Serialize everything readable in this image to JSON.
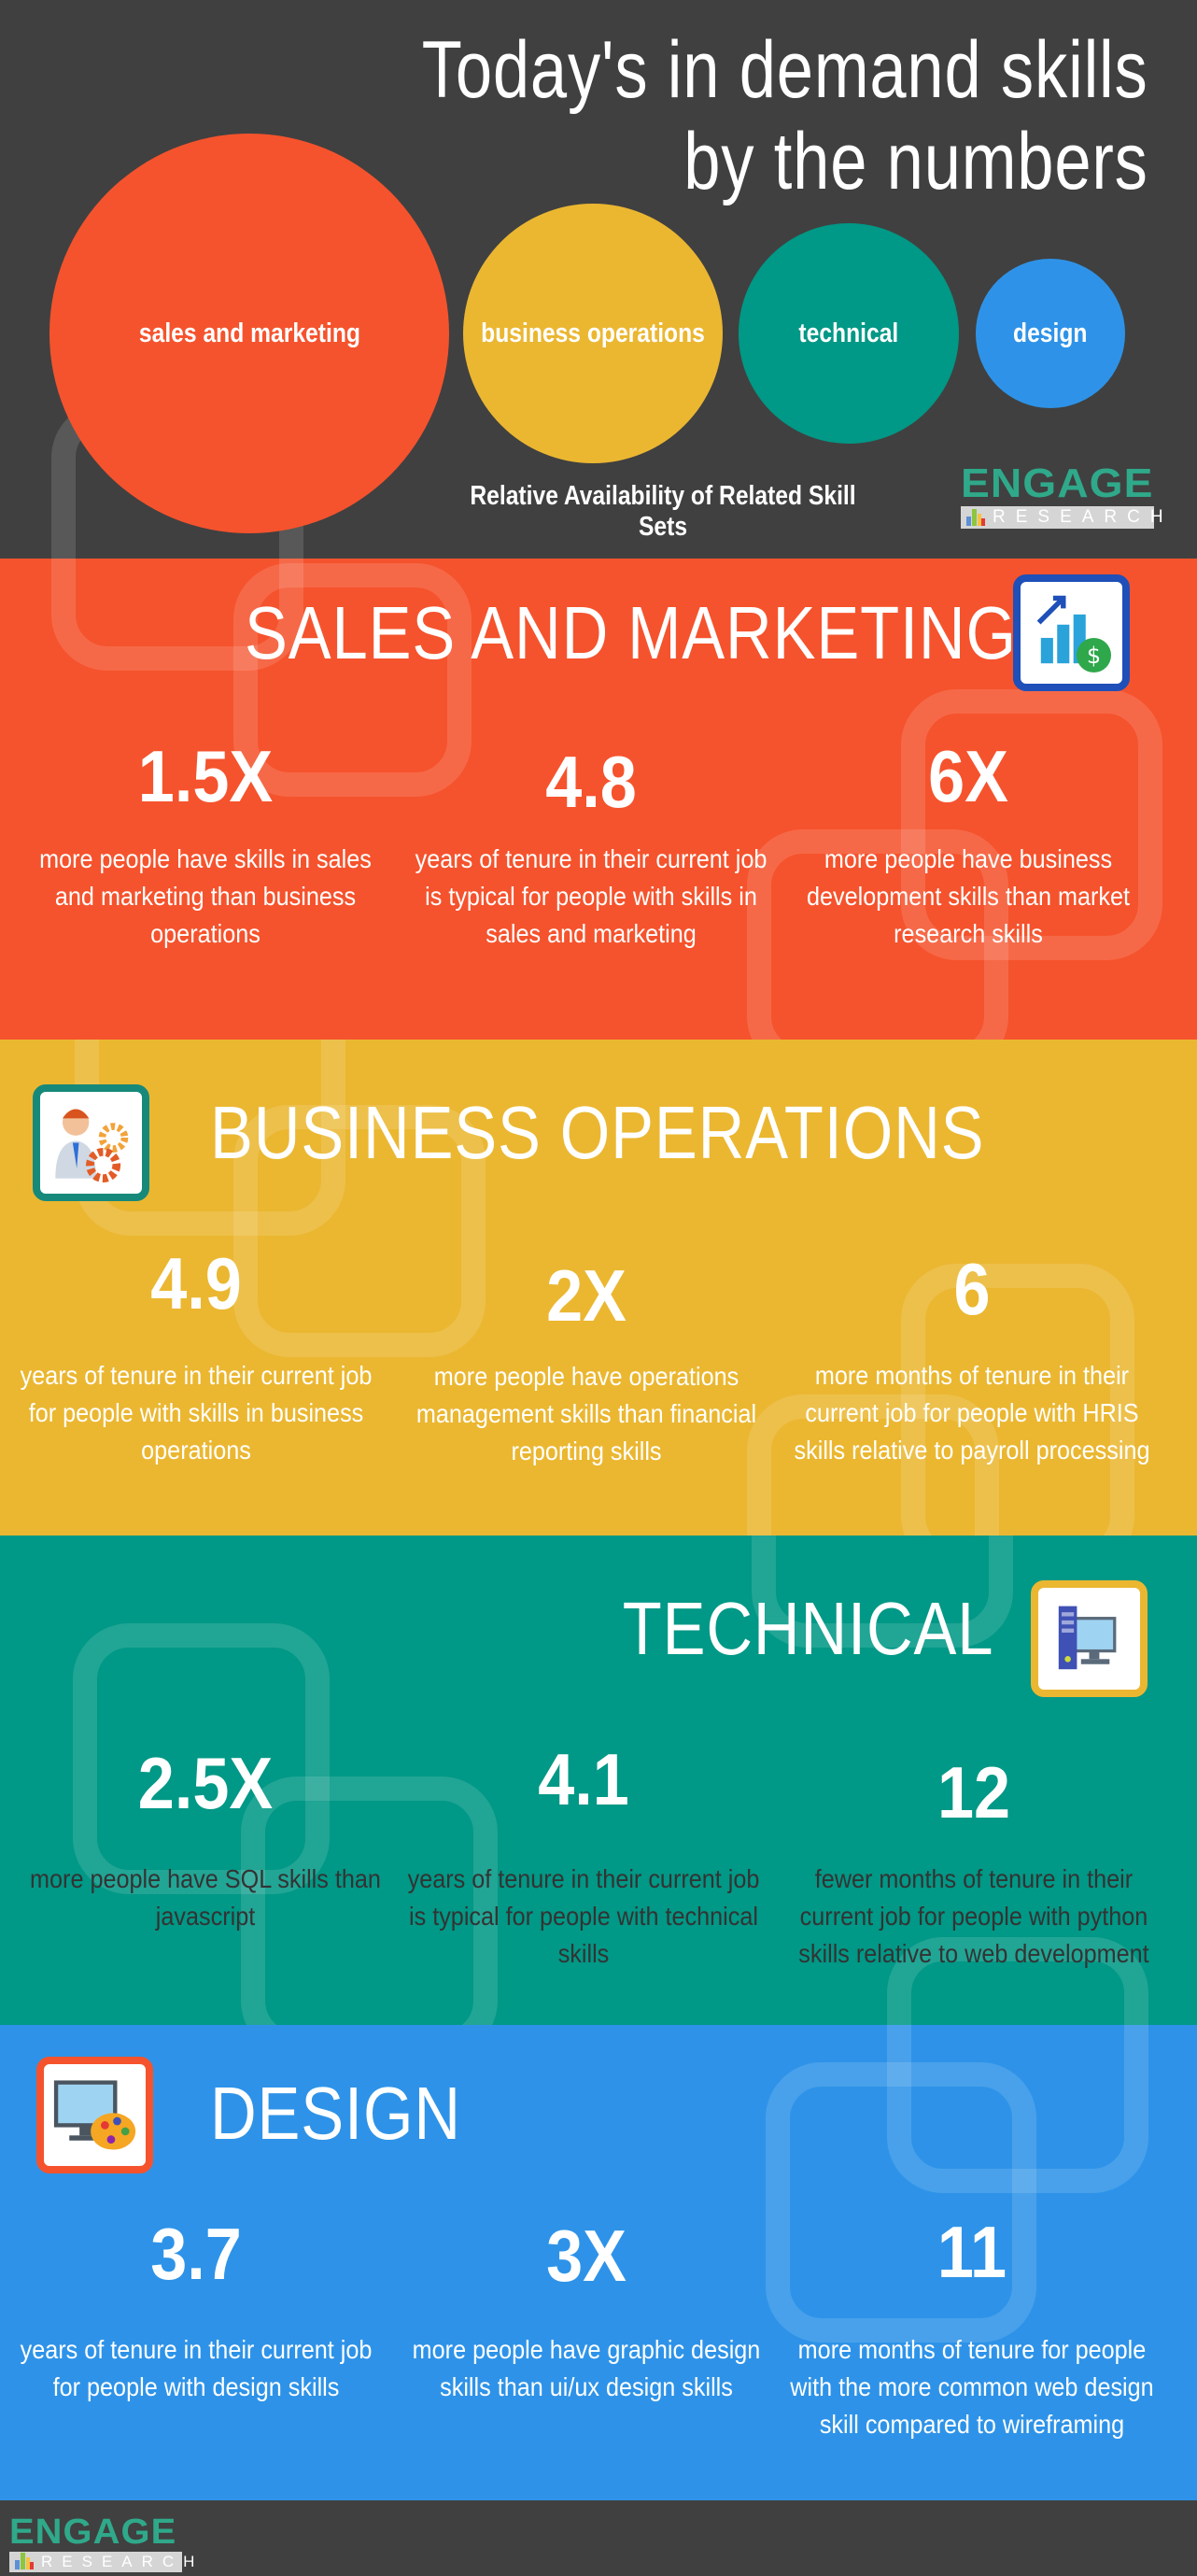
{
  "header": {
    "title_line1": "Today's in demand skills",
    "title_line2": "by the numbers",
    "bubbles": [
      {
        "label": "sales and marketing",
        "color": "#f5532d"
      },
      {
        "label": "business operations",
        "color": "#ebb731"
      },
      {
        "label": "technical",
        "color": "#009886"
      },
      {
        "label": "design",
        "color": "#2e93e8"
      }
    ],
    "caption": "Relative Availability of Related Skill Sets"
  },
  "logo": {
    "main": "ENGAGE",
    "sub": "RESEARCH"
  },
  "sections": [
    {
      "title": "SALES AND MARKETING",
      "color": "#f5532d",
      "icon": "growth-chart-dollar-icon",
      "stats": [
        {
          "value": "1.5X",
          "text": "more people have skills in sales and marketing than business operations"
        },
        {
          "value": "4.8",
          "text": "years of tenure in their current job is typical for people with skills in sales and marketing"
        },
        {
          "value": "6X",
          "text": "more people have business development skills than market research skills"
        }
      ]
    },
    {
      "title": "BUSINESS OPERATIONS",
      "color": "#ebb731",
      "icon": "businessman-gears-icon",
      "stats": [
        {
          "value": "4.9",
          "text": "years of tenure in their current job for people with skills in business operations"
        },
        {
          "value": "2X",
          "text": "more people have operations management skills than financial reporting skills"
        },
        {
          "value": "6",
          "text": "more months of tenure in their current job for people with HRIS skills relative to payroll processing"
        }
      ]
    },
    {
      "title": "TECHNICAL",
      "color": "#009886",
      "icon": "desktop-computer-icon",
      "stats": [
        {
          "value": "2.5X",
          "text": "more people have SQL skills than javascript"
        },
        {
          "value": "4.1",
          "text": "years of tenure in their current job is typical for people with technical skills"
        },
        {
          "value": "12",
          "text": "fewer months of tenure in their current job for people with python skills relative to web development"
        }
      ]
    },
    {
      "title": "DESIGN",
      "color": "#2e93e8",
      "icon": "monitor-palette-icon",
      "stats": [
        {
          "value": "3.7",
          "text": "years of tenure in their current job for people with design skills"
        },
        {
          "value": "3X",
          "text": "more people have graphic design skills than ui/ux design skills"
        },
        {
          "value": "11",
          "text": "more months of tenure for people with the more common web design skill compared to wireframing"
        }
      ]
    }
  ]
}
